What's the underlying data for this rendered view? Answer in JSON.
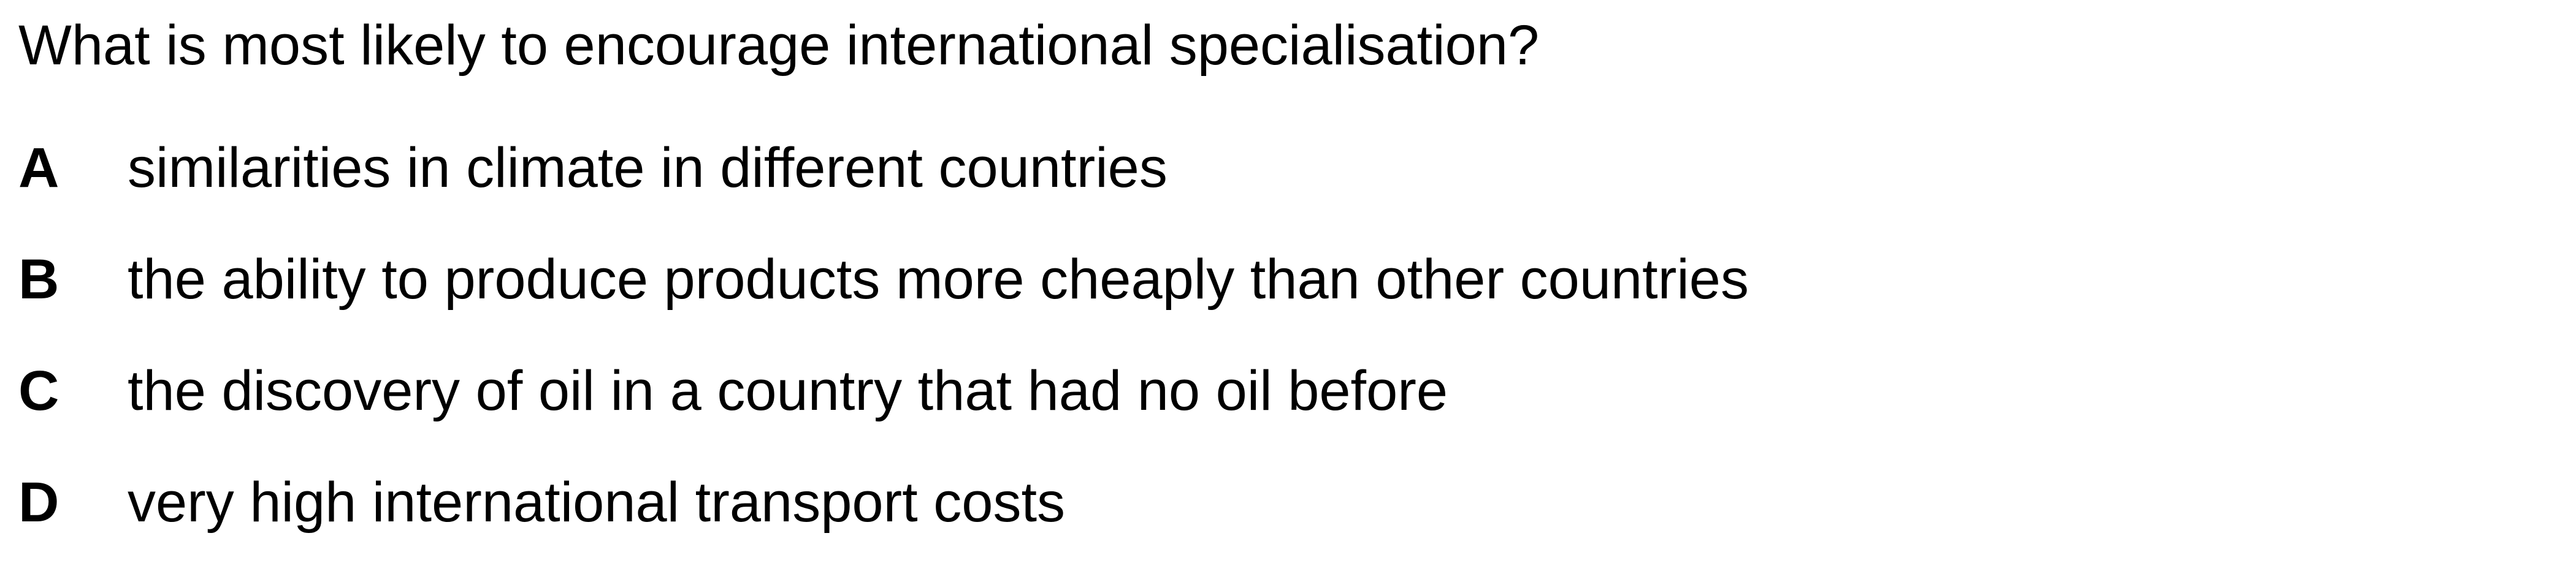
{
  "question": {
    "text": "What is most likely to encourage international specialisation?"
  },
  "options": [
    {
      "letter": "A",
      "text": "similarities in climate in different countries"
    },
    {
      "letter": "B",
      "text": "the ability to produce products more cheaply than other countries"
    },
    {
      "letter": "C",
      "text": "the discovery of oil in a country that had no oil before"
    },
    {
      "letter": "D",
      "text": "very high international transport costs"
    }
  ]
}
